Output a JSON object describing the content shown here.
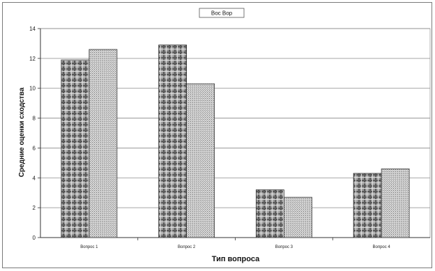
{
  "chart_data": {
    "type": "bar",
    "title": "",
    "legend_label": "Вос Вор",
    "legend_position": "top-center",
    "xlabel": "Тип вопроса",
    "ylabel": "Средние оценки сходства",
    "categories": [
      "Вопрос 1",
      "Вопрос 2",
      "Вопрос 3",
      "Вопрос 4"
    ],
    "series": [
      {
        "values": [
          11.9,
          12.9,
          3.2,
          4.3
        ],
        "color": "#8f8f8f",
        "pattern": "plaid"
      },
      {
        "values": [
          12.6,
          10.3,
          2.7,
          4.6
        ],
        "color": "#c8c8c8",
        "pattern": "dotted"
      }
    ],
    "ylim": [
      0,
      14
    ],
    "yticks": [
      "0",
      "2",
      "4",
      "6",
      "8",
      "10",
      "12",
      "14"
    ],
    "grid": true
  }
}
